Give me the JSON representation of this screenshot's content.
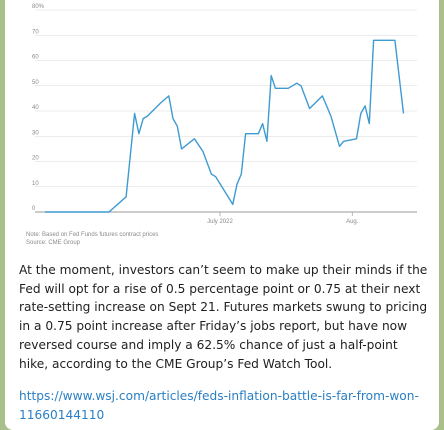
{
  "message": {
    "body": "At the moment, investors can’t seem to make up their minds if the Fed will opt for a rise of 0.5 percentage point or 0.75 at their next rate-setting increase on Sept 21. Futures markets swung to pricing in a 0.75 point increase after Friday’s jobs report, but have now reversed course and imply a 62.5% chance of just a half-point hike, according to the CME Group’s Fed Watch Tool.",
    "link": "https://www.wsj.com/articles/feds-inflation-battle-is-far-from-won-11660144110"
  },
  "chart_note": {
    "note": "Note: Based on Fed Funds futures contract prices",
    "source": "Source: CME Group"
  },
  "colors": {
    "line": "#3d9bd2",
    "grid": "#d9d9d9",
    "tick_text": "#8a8a8a",
    "link": "#2a7fc4",
    "background": "#a9c08a"
  },
  "chart_data": {
    "type": "line",
    "title": "",
    "xlabel": "",
    "ylabel": "",
    "ylim": [
      0,
      80
    ],
    "y_ticks": [
      "0",
      "10",
      "20",
      "30",
      "40",
      "50",
      "60",
      "70",
      "80%"
    ],
    "x_ticks": [
      {
        "label": "July 2022",
        "pos": 41
      },
      {
        "label": "Aug.",
        "pos": 72
      }
    ],
    "grid": true,
    "series": [
      {
        "values": [
          [
            0,
            0
          ],
          [
            10,
            0
          ],
          [
            15,
            0
          ],
          [
            19,
            6
          ],
          [
            21,
            39
          ],
          [
            22,
            31
          ],
          [
            23,
            37
          ],
          [
            24,
            38
          ],
          [
            27,
            43
          ],
          [
            29,
            46
          ],
          [
            30,
            37
          ],
          [
            31,
            34
          ],
          [
            32,
            25
          ],
          [
            35,
            29
          ],
          [
            37,
            24
          ],
          [
            39,
            15
          ],
          [
            40,
            14
          ],
          [
            44,
            3
          ],
          [
            45,
            11
          ],
          [
            46,
            15
          ],
          [
            47,
            31
          ],
          [
            50,
            31
          ],
          [
            51,
            35
          ],
          [
            52,
            28
          ],
          [
            53,
            54
          ],
          [
            54,
            49
          ],
          [
            57,
            49
          ],
          [
            59,
            51
          ],
          [
            60,
            50
          ],
          [
            62,
            41
          ],
          [
            65,
            46
          ],
          [
            67,
            38
          ],
          [
            69,
            26
          ],
          [
            70,
            28
          ],
          [
            73,
            29
          ],
          [
            74,
            39
          ],
          [
            75,
            42
          ],
          [
            76,
            35
          ],
          [
            77,
            68
          ],
          [
            78,
            68
          ],
          [
            82,
            68
          ],
          [
            84,
            39
          ]
        ]
      }
    ],
    "x_range": [
      0,
      86
    ]
  }
}
